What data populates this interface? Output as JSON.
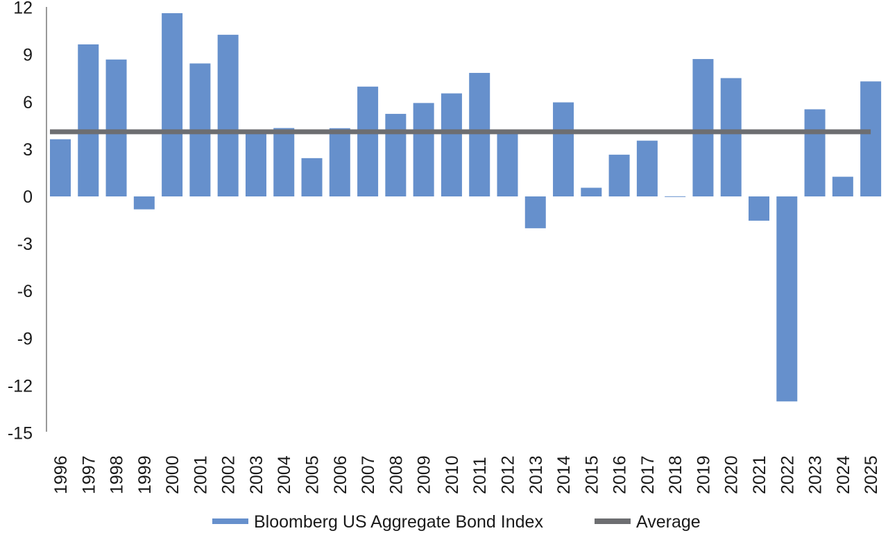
{
  "chart_data": {
    "type": "bar",
    "title": "",
    "xlabel": "",
    "ylabel": "",
    "ylim": [
      -15,
      12
    ],
    "yticks": [
      12,
      9,
      6,
      3,
      0,
      -3,
      -6,
      -9,
      -12,
      -15
    ],
    "grid": false,
    "legend_position": "bottom-center",
    "categories": [
      "1996",
      "1997",
      "1998",
      "1999",
      "2000",
      "2001",
      "2002",
      "2003",
      "2004",
      "2005",
      "2006",
      "2007",
      "2008",
      "2009",
      "2010",
      "2011",
      "2012",
      "2013",
      "2014",
      "2015",
      "2016",
      "2017",
      "2018",
      "2019",
      "2020",
      "2021",
      "2022",
      "2023",
      "2024",
      "2025"
    ],
    "series": [
      {
        "name": "Bloomberg US Aggregate Bond Index",
        "type": "bar",
        "color": "#6690cc",
        "values": [
          3.63,
          9.65,
          8.69,
          -0.82,
          11.63,
          8.44,
          10.26,
          4.1,
          4.34,
          2.43,
          4.33,
          6.97,
          5.24,
          5.93,
          6.54,
          7.84,
          4.21,
          -2.02,
          5.97,
          0.55,
          2.65,
          3.54,
          0.01,
          8.72,
          7.51,
          -1.54,
          -13.01,
          5.53,
          1.25,
          7.3
        ]
      },
      {
        "name": "Average",
        "type": "line",
        "color": "#6d6e71",
        "value": 4.1
      }
    ]
  }
}
